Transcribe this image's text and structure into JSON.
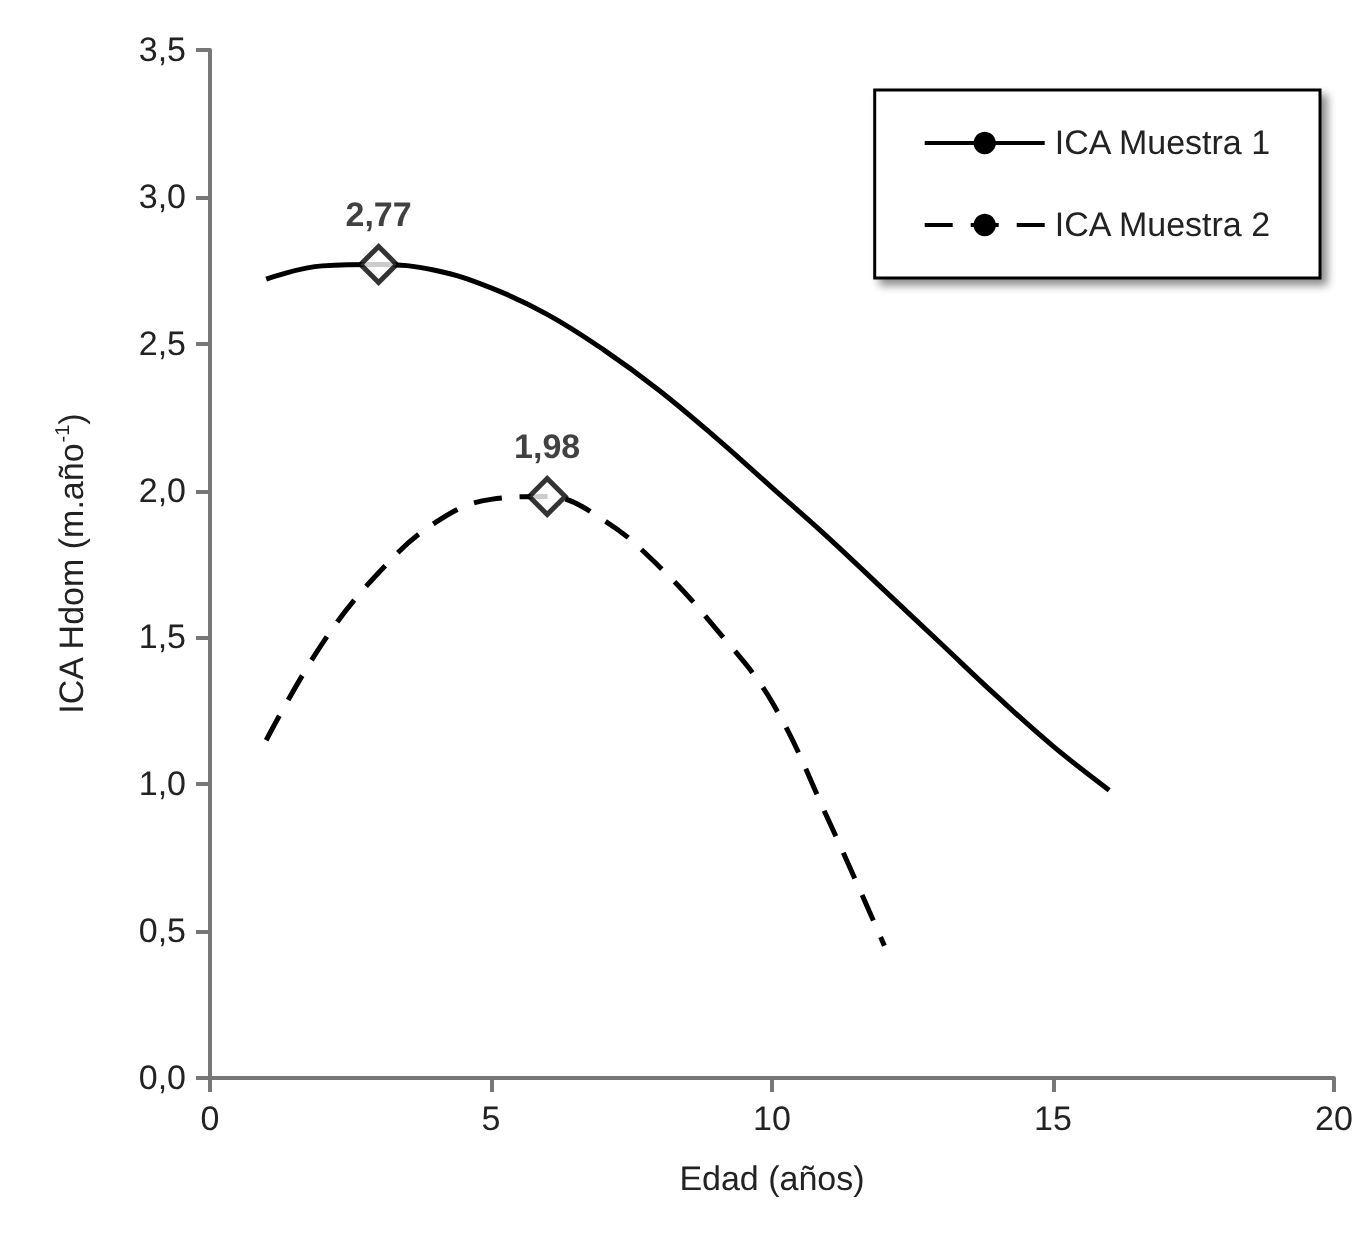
{
  "chart_data": {
    "type": "line",
    "xlabel": "Edad (años)",
    "ylabel": "ICA Hdom (m.año$^{-1}$)",
    "xlim": [
      0,
      20
    ],
    "xticks": [
      0,
      5,
      10,
      15,
      20
    ],
    "ylim": [
      0,
      3.5
    ],
    "yticks": [
      {
        "value": 0,
        "label": "0,0"
      },
      {
        "value": 0.5,
        "label": "0,5"
      },
      {
        "value": 1,
        "label": "1,0"
      },
      {
        "value": 1.5,
        "label": "1,5"
      },
      {
        "value": 2,
        "label": "2,0"
      },
      {
        "value": 2.5,
        "label": "2,5"
      },
      {
        "value": 3,
        "label": "3,0"
      },
      {
        "value": 3.5,
        "label": "3,5"
      }
    ],
    "grid": false,
    "legend": "top right",
    "marker": "none",
    "series": [
      {
        "name": "ICA Muestra 1",
        "color": "#000000",
        "line_style": "solid",
        "x": [
          1,
          2,
          3,
          4,
          5,
          6,
          7,
          8,
          9,
          10,
          11,
          12,
          13,
          14,
          15,
          16
        ],
        "values": [
          2.72,
          2.765,
          2.77,
          2.75,
          2.69,
          2.6,
          2.48,
          2.34,
          2.18,
          2.01,
          1.84,
          1.66,
          1.48,
          1.3,
          1.13,
          0.98
        ]
      },
      {
        "name": "ICA Muestra 2",
        "color": "#000000",
        "line_style": "dashed",
        "x": [
          1,
          2,
          3,
          4,
          5,
          6,
          7,
          8,
          9,
          10,
          11,
          12
        ],
        "values": [
          1.15,
          1.48,
          1.72,
          1.89,
          1.97,
          1.98,
          1.9,
          1.74,
          1.53,
          1.28,
          0.88,
          0.45
        ]
      },
      {
        "type": "scatter",
        "color": "#000000",
        "marker": "diamond",
        "x": [
          3
        ],
        "values": [
          2.77
        ],
        "value_labels": [
          "2,77"
        ]
      },
      {
        "type": "scatter",
        "color": "#000000",
        "marker": "diamond",
        "x": [
          6
        ],
        "values": [
          1.98
        ],
        "value_labels": [
          "1,98"
        ]
      }
    ]
  }
}
